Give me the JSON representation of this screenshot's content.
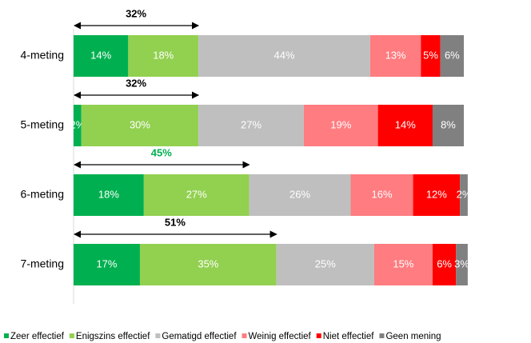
{
  "chart_data": {
    "type": "stacked-bar-horizontal",
    "categories": [
      "4-meting",
      "5-meting",
      "6-meting",
      "7-meting"
    ],
    "xlim": [
      0,
      100
    ],
    "series": [
      {
        "name": "Zeer effectief",
        "color": "#00b050",
        "values": [
          14,
          2,
          18,
          17
        ],
        "value_labels": [
          "14%",
          "2%",
          "18%",
          "17%"
        ]
      },
      {
        "name": "Enigszins effectief",
        "color": "#92d050",
        "values": [
          18,
          30,
          27,
          35
        ],
        "value_labels": [
          "18%",
          "30%",
          "27%",
          "35%"
        ]
      },
      {
        "name": "Gematigd effectief",
        "color": "#bfbfbf",
        "values": [
          44,
          27,
          26,
          25
        ],
        "value_labels": [
          "44%",
          "27%",
          "26%",
          "25%"
        ]
      },
      {
        "name": "Weinig effectief",
        "color": "#ff7c80",
        "values": [
          13,
          19,
          16,
          15
        ],
        "value_labels": [
          "13%",
          "19%",
          "16%",
          "15%"
        ]
      },
      {
        "name": "Niet effectief",
        "color": "#ff0000",
        "values": [
          5,
          14,
          12,
          6
        ],
        "value_labels": [
          "5%",
          "14%",
          "12%",
          "6%"
        ]
      },
      {
        "name": "Geen mening",
        "color": "#808080",
        "values": [
          6,
          8,
          2,
          3
        ],
        "value_labels": [
          "6%",
          "8%",
          "2%",
          "3%"
        ]
      }
    ],
    "annotations": [
      {
        "text": "32%",
        "color": "#000000"
      },
      {
        "text": "32%",
        "color": "#000000"
      },
      {
        "text": "45%",
        "color": "#00b050"
      },
      {
        "text": "51%",
        "color": "#000000"
      }
    ],
    "legend": "bottom"
  }
}
